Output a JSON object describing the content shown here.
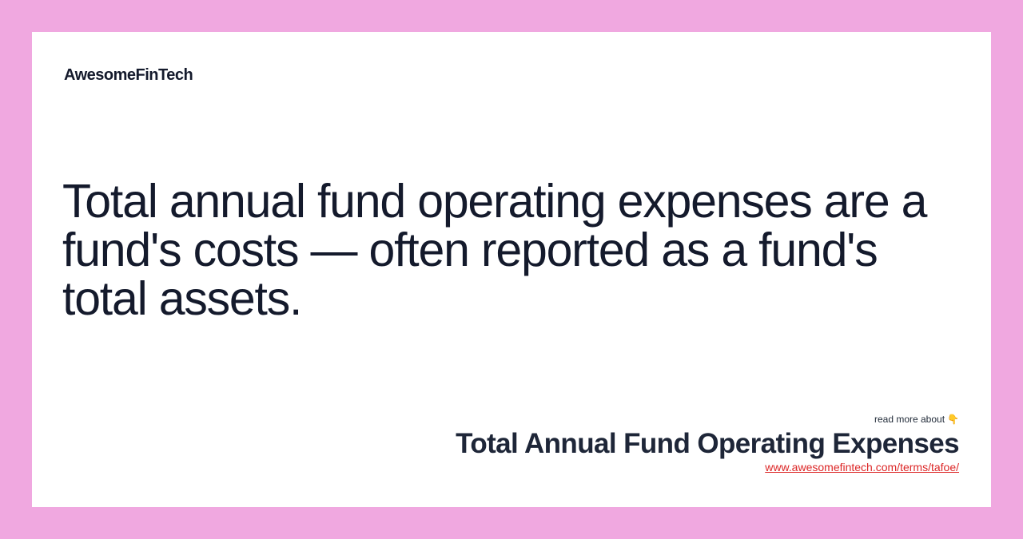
{
  "brand": {
    "name": "AwesomeFinTech"
  },
  "headline": {
    "text": "Total annual fund operating expenses are a fund's costs — often reported as a fund's total assets."
  },
  "footer": {
    "read_more": "read more about",
    "pointer_icon": "👇",
    "term_title": "Total Annual Fund Operating Expenses",
    "term_url": "www.awesomefintech.com/terms/tafoe/"
  },
  "colors": {
    "background": "#f0a8e0",
    "card": "#ffffff",
    "text": "#141a2c",
    "link": "#dc2626"
  }
}
